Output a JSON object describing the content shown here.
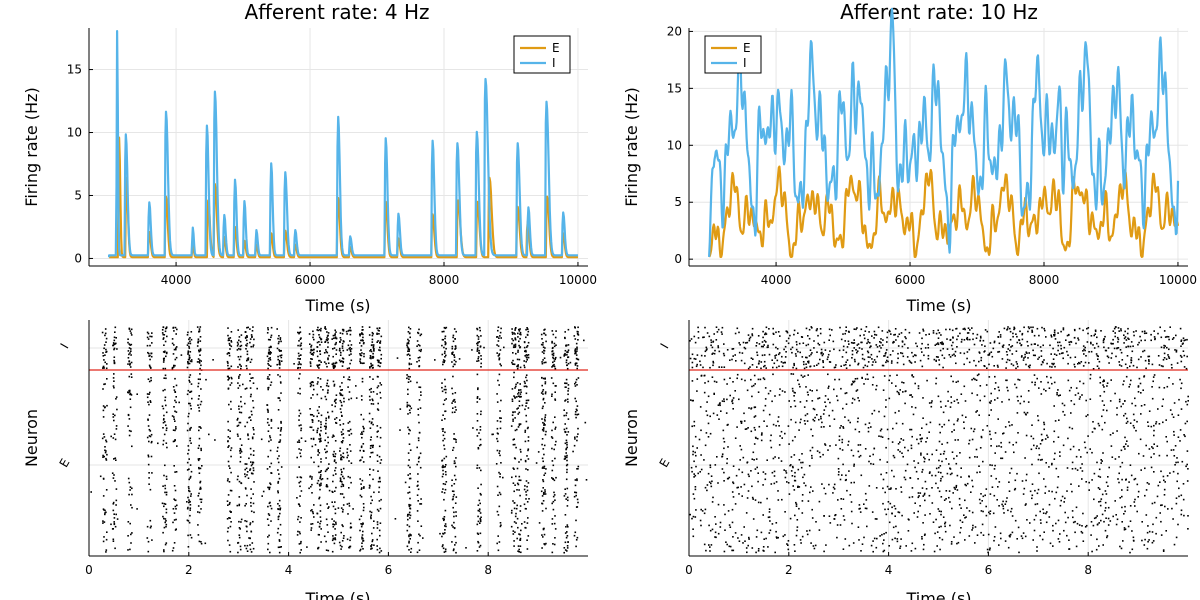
{
  "colors": {
    "E": "#e09b14",
    "I": "#56b4e9",
    "divider": "#e0281c",
    "spike": "#000000",
    "grid": "#e6e6e6",
    "axis": "#000000"
  },
  "chart_data": [
    {
      "type": "line",
      "title": "Afferent rate: 4 Hz",
      "xlabel": "Time (s)",
      "ylabel": "Firing rate (Hz)",
      "xlim": [
        2700,
        10150
      ],
      "ylim": [
        -0.6,
        18.3
      ],
      "xticks": [
        4000,
        6000,
        8000,
        10000
      ],
      "yticks": [
        0,
        5,
        10,
        15
      ],
      "grid": true,
      "legend": {
        "position": "top-right",
        "entries": [
          "E",
          "I"
        ]
      },
      "x_range": [
        3000,
        10000
      ],
      "series": [
        {
          "name": "E",
          "color": "#e09b14",
          "baseline": 0.1,
          "events": [
            [
              3150,
              9.5,
              22
            ],
            [
              3260,
              6.3,
              30
            ],
            [
              3600,
              2.0,
              30
            ],
            [
              3850,
              4.8,
              35
            ],
            [
              4250,
              1.0,
              20
            ],
            [
              4480,
              4.5,
              35
            ],
            [
              4580,
              5.8,
              40
            ],
            [
              4720,
              1.6,
              28
            ],
            [
              4880,
              2.4,
              30
            ],
            [
              5020,
              1.3,
              28
            ],
            [
              5200,
              1.0,
              25
            ],
            [
              5420,
              1.9,
              30
            ],
            [
              5630,
              2.1,
              35
            ],
            [
              5780,
              1.0,
              28
            ],
            [
              6420,
              4.7,
              35
            ],
            [
              6600,
              0.8,
              28
            ],
            [
              7130,
              4.4,
              35
            ],
            [
              7320,
              1.5,
              30
            ],
            [
              7830,
              3.4,
              35
            ],
            [
              8210,
              4.5,
              45
            ],
            [
              8500,
              4.4,
              40
            ],
            [
              8680,
              6.3,
              45
            ],
            [
              9100,
              4.0,
              40
            ],
            [
              9250,
              2.8,
              32
            ],
            [
              9540,
              4.8,
              40
            ],
            [
              9780,
              1.9,
              30
            ]
          ]
        },
        {
          "name": "I",
          "color": "#56b4e9",
          "baseline": 0.25,
          "events": [
            [
              3120,
              17.8,
              16
            ],
            [
              3250,
              9.6,
              35
            ],
            [
              3600,
              4.2,
              30
            ],
            [
              3850,
              11.4,
              40
            ],
            [
              4250,
              2.2,
              20
            ],
            [
              4460,
              10.3,
              35
            ],
            [
              4580,
              13.0,
              40
            ],
            [
              4720,
              3.2,
              28
            ],
            [
              4880,
              6.0,
              30
            ],
            [
              5020,
              4.3,
              28
            ],
            [
              5200,
              2.0,
              25
            ],
            [
              5420,
              7.3,
              30
            ],
            [
              5630,
              6.6,
              35
            ],
            [
              5780,
              2.0,
              28
            ],
            [
              6420,
              11.0,
              35
            ],
            [
              6600,
              1.5,
              28
            ],
            [
              7130,
              9.3,
              35
            ],
            [
              7320,
              3.3,
              30
            ],
            [
              7830,
              9.1,
              35
            ],
            [
              8200,
              8.9,
              40
            ],
            [
              8490,
              9.8,
              40
            ],
            [
              8620,
              14.0,
              50
            ],
            [
              9100,
              8.9,
              40
            ],
            [
              9260,
              3.8,
              30
            ],
            [
              9530,
              12.2,
              45
            ],
            [
              9780,
              3.4,
              30
            ]
          ]
        }
      ]
    },
    {
      "type": "line",
      "title": "Afferent rate: 10 Hz",
      "xlabel": "Time (s)",
      "ylabel": "Firing rate (Hz)",
      "xlim": [
        2700,
        10150
      ],
      "ylim": [
        -0.6,
        20.3
      ],
      "xticks": [
        4000,
        6000,
        8000,
        10000
      ],
      "yticks": [
        0,
        5,
        10,
        15,
        20
      ],
      "grid": true,
      "legend": {
        "position": "top-left",
        "entries": [
          "E",
          "I"
        ]
      },
      "x_range": [
        3000,
        10000
      ],
      "series": [
        {
          "name": "E",
          "color": "#e09b14",
          "base": 3.8,
          "amp": 1.6,
          "seed": 11,
          "peaks": [
            [
              5150,
              6.5,
              40
            ],
            [
              5750,
              5.9,
              40
            ],
            [
              8230,
              8.1,
              40
            ],
            [
              8550,
              6.6,
              40
            ],
            [
              9800,
              6.0,
              40
            ]
          ]
        },
        {
          "name": "I",
          "color": "#56b4e9",
          "base": 10.5,
          "amp": 3.2,
          "seed": 29,
          "peaks": [
            [
              5130,
              16.5,
              40
            ],
            [
              5750,
              18.0,
              40
            ],
            [
              8230,
              19.7,
              35
            ],
            [
              8670,
              15.3,
              40
            ],
            [
              9800,
              15.4,
              40
            ]
          ]
        }
      ]
    },
    {
      "type": "scatter",
      "subtype": "raster",
      "title": "",
      "xlabel": "Time (s)",
      "ylabel": "Neuron",
      "ytick_labels": [
        "I",
        "E"
      ],
      "xlim": [
        0,
        10
      ],
      "xticks": [
        0,
        2,
        4,
        6,
        8
      ],
      "grid": true,
      "excitatory_fraction": 0.8,
      "pattern": "burst",
      "bursts": [
        0.3,
        0.5,
        0.8,
        1.2,
        1.5,
        1.7,
        2.0,
        2.2,
        2.8,
        3.0,
        3.15,
        3.25,
        3.6,
        3.8,
        4.2,
        4.45,
        4.6,
        4.75,
        4.9,
        5.05,
        5.2,
        5.45,
        5.65,
        5.8,
        6.4,
        6.6,
        7.1,
        7.3,
        7.8,
        8.2,
        8.5,
        8.6,
        8.75,
        9.1,
        9.3,
        9.55,
        9.75
      ],
      "seed": 7
    },
    {
      "type": "scatter",
      "subtype": "raster",
      "title": "",
      "xlabel": "Time (s)",
      "ylabel": "Neuron",
      "ytick_labels": [
        "I",
        "E"
      ],
      "xlim": [
        0,
        10
      ],
      "xticks": [
        0,
        2,
        4,
        6,
        8
      ],
      "grid": true,
      "excitatory_fraction": 0.8,
      "pattern": "asynchronous",
      "seed": 19
    }
  ]
}
